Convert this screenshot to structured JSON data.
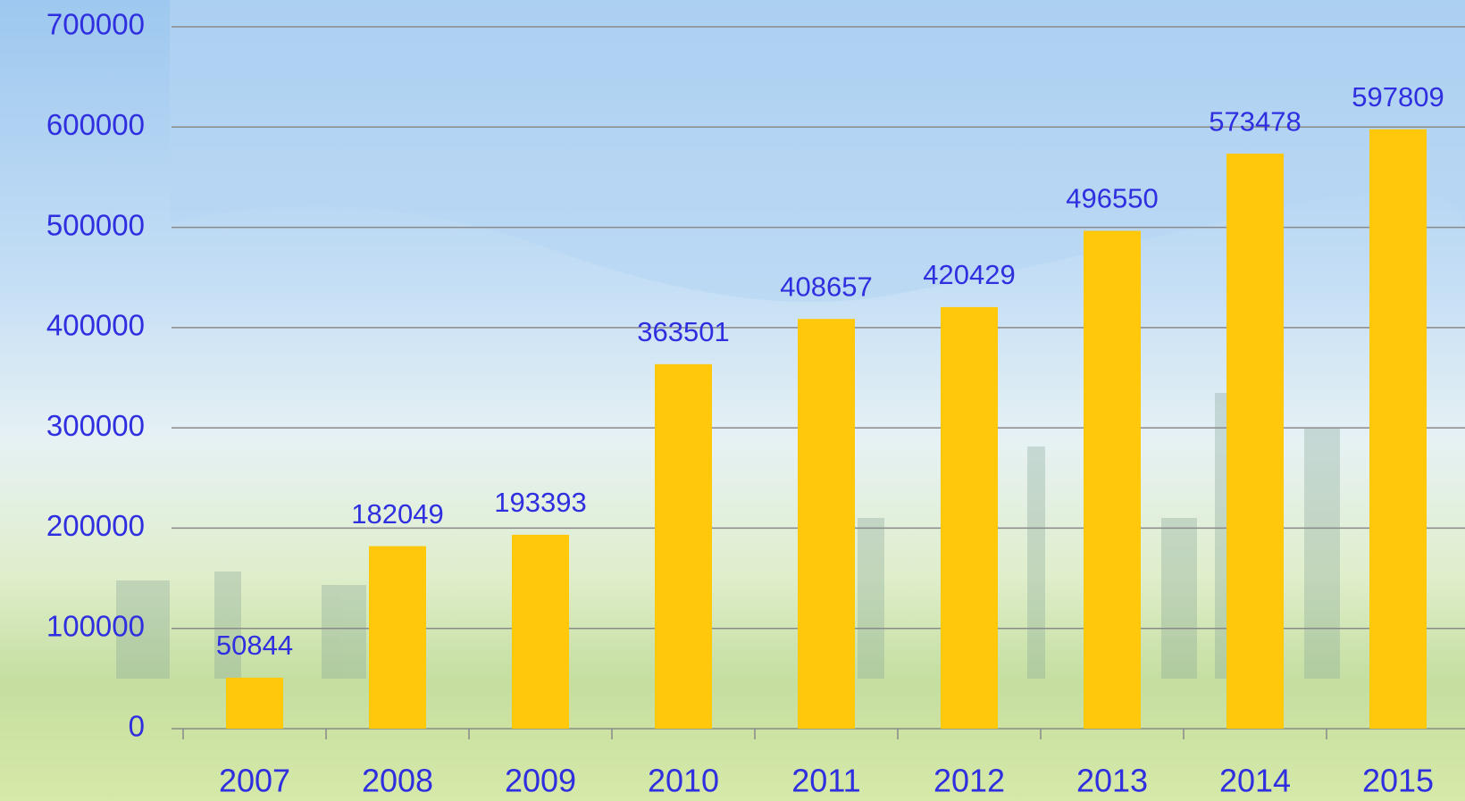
{
  "chart_data": {
    "type": "bar",
    "categories": [
      "2007",
      "2008",
      "2009",
      "2010",
      "2011",
      "2012",
      "2013",
      "2014",
      "2015"
    ],
    "values": [
      50844,
      182049,
      193393,
      363501,
      408657,
      420429,
      496550,
      573478,
      597809
    ],
    "color": "#ffc80a",
    "ylim": [
      0,
      700000
    ],
    "yticks": [
      0,
      100000,
      200000,
      300000,
      400000,
      500000,
      600000,
      700000
    ],
    "grid": true,
    "data_labels": true
  }
}
